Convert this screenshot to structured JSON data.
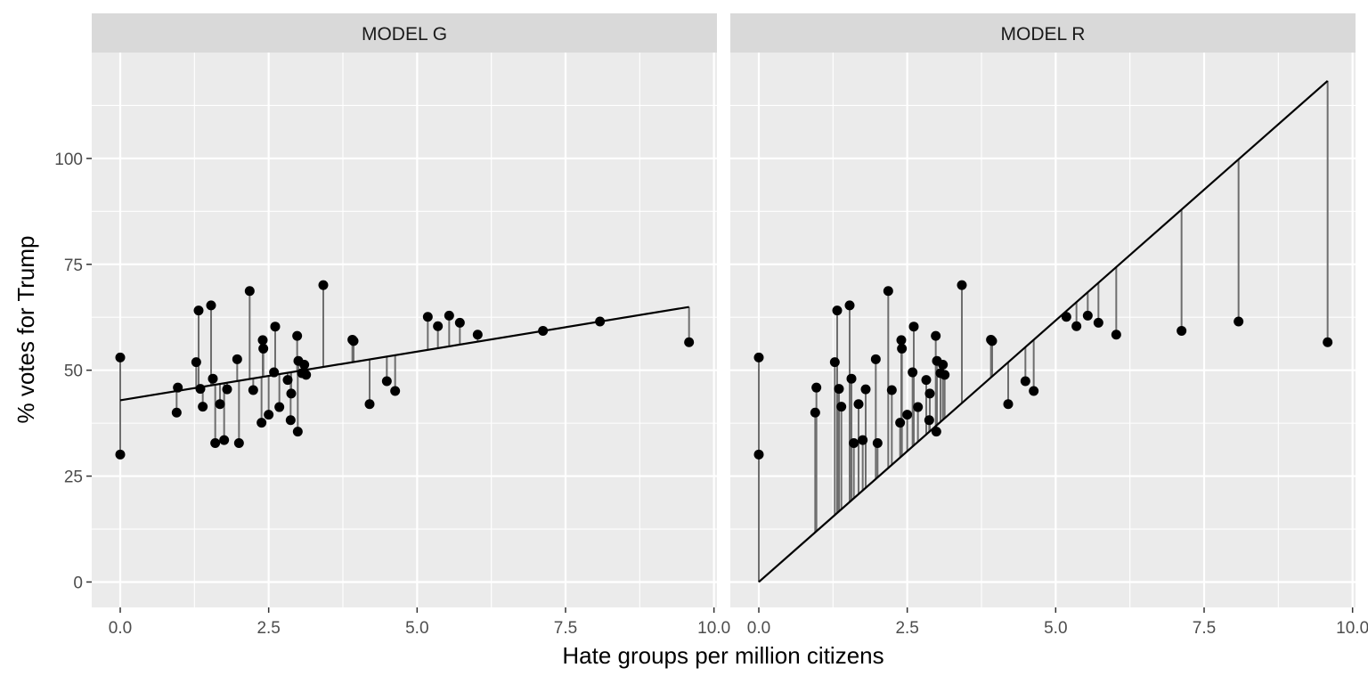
{
  "chart_data": {
    "type": "scatter",
    "xlabel": "Hate groups per million citizens",
    "ylabel": "% votes for Trump",
    "xlim": [
      -0.48,
      10.05
    ],
    "ylim": [
      -6,
      125
    ],
    "x_ticks": [
      0.0,
      2.5,
      5.0,
      7.5,
      10.0
    ],
    "x_tick_labels": [
      "0.0",
      "2.5",
      "5.0",
      "7.5",
      "10.0"
    ],
    "y_ticks": [
      0,
      25,
      50,
      75,
      100
    ],
    "y_tick_labels": [
      "0",
      "25",
      "50",
      "75",
      "100"
    ],
    "grid": true,
    "points": [
      {
        "x": 0.0,
        "y": 53.0
      },
      {
        "x": 0.0,
        "y": 30.1
      },
      {
        "x": 0.95,
        "y": 40.0
      },
      {
        "x": 0.97,
        "y": 45.9
      },
      {
        "x": 1.28,
        "y": 51.9
      },
      {
        "x": 1.32,
        "y": 64.1
      },
      {
        "x": 1.35,
        "y": 45.6
      },
      {
        "x": 1.39,
        "y": 41.4
      },
      {
        "x": 1.53,
        "y": 65.3
      },
      {
        "x": 1.56,
        "y": 48.0
      },
      {
        "x": 1.6,
        "y": 32.8
      },
      {
        "x": 1.68,
        "y": 42.0
      },
      {
        "x": 1.75,
        "y": 33.5
      },
      {
        "x": 1.8,
        "y": 45.5
      },
      {
        "x": 1.97,
        "y": 52.6
      },
      {
        "x": 2.0,
        "y": 32.8
      },
      {
        "x": 2.18,
        "y": 68.7
      },
      {
        "x": 2.24,
        "y": 45.3
      },
      {
        "x": 2.38,
        "y": 37.6
      },
      {
        "x": 2.4,
        "y": 57.1
      },
      {
        "x": 2.41,
        "y": 55.1
      },
      {
        "x": 2.5,
        "y": 39.5
      },
      {
        "x": 2.59,
        "y": 49.5
      },
      {
        "x": 2.61,
        "y": 60.3
      },
      {
        "x": 2.68,
        "y": 41.3
      },
      {
        "x": 2.82,
        "y": 47.7
      },
      {
        "x": 2.87,
        "y": 38.2
      },
      {
        "x": 2.88,
        "y": 44.5
      },
      {
        "x": 2.98,
        "y": 58.1
      },
      {
        "x": 2.99,
        "y": 35.5
      },
      {
        "x": 3.0,
        "y": 52.2
      },
      {
        "x": 3.06,
        "y": 49.3
      },
      {
        "x": 3.1,
        "y": 51.3
      },
      {
        "x": 3.13,
        "y": 48.9
      },
      {
        "x": 3.42,
        "y": 70.1
      },
      {
        "x": 3.91,
        "y": 57.2
      },
      {
        "x": 3.93,
        "y": 56.9
      },
      {
        "x": 4.2,
        "y": 42.0
      },
      {
        "x": 4.49,
        "y": 47.4
      },
      {
        "x": 4.63,
        "y": 45.1
      },
      {
        "x": 5.18,
        "y": 62.6
      },
      {
        "x": 5.35,
        "y": 60.4
      },
      {
        "x": 5.54,
        "y": 62.9
      },
      {
        "x": 5.72,
        "y": 61.2
      },
      {
        "x": 6.02,
        "y": 58.4
      },
      {
        "x": 7.12,
        "y": 59.3
      },
      {
        "x": 8.08,
        "y": 61.5
      },
      {
        "x": 9.58,
        "y": 56.6
      }
    ],
    "panels": [
      {
        "label": "MODEL G",
        "line": {
          "intercept": 42.9,
          "slope": 2.3
        }
      },
      {
        "label": "MODEL R",
        "line": {
          "intercept": 0.0,
          "slope": 12.35
        }
      }
    ],
    "colors": {
      "panel_bg": "#ebebeb",
      "grid": "#ffffff",
      "strip_bg": "#d9d9d9",
      "points": "#000000",
      "model_line": "#000000",
      "residual": "#6e6e6e"
    }
  }
}
